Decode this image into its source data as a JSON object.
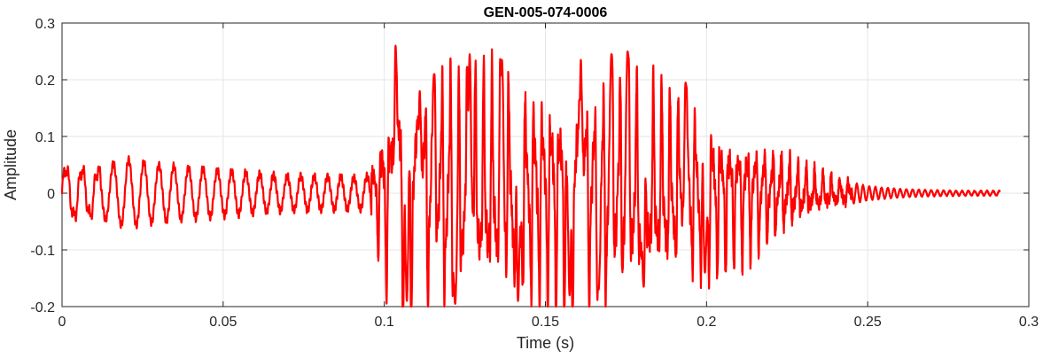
{
  "chart_data": {
    "type": "line",
    "title": "GEN-005-074-0006",
    "xlabel": "Time (s)",
    "ylabel": "Amplitude",
    "xlim": [
      0,
      0.3
    ],
    "ylim": [
      -0.2,
      0.3
    ],
    "xticks": [
      0,
      0.05,
      0.1,
      0.15,
      0.2,
      0.25,
      0.3
    ],
    "xtick_labels": [
      "0",
      "0.05",
      "0.1",
      "0.15",
      "0.2",
      "0.25",
      "0.3"
    ],
    "yticks": [
      -0.2,
      -0.1,
      0,
      0.1,
      0.2,
      0.3
    ],
    "ytick_labels": [
      "-0.2",
      "-0.1",
      "0",
      "0.1",
      "0.2",
      "0.3"
    ],
    "grid": true,
    "legend": "none",
    "colors": {
      "series": "#ff0000",
      "grid": "#e6e6e6",
      "axes": "#262626"
    },
    "series": [
      {
        "color": "#ff0000",
        "envelope": [
          [
            0.0,
            0.045
          ],
          [
            0.01,
            0.04
          ],
          [
            0.02,
            0.06
          ],
          [
            0.03,
            0.05
          ],
          [
            0.04,
            0.045
          ],
          [
            0.05,
            0.04
          ],
          [
            0.06,
            0.035
          ],
          [
            0.07,
            0.03
          ],
          [
            0.08,
            0.03
          ],
          [
            0.09,
            0.028
          ],
          [
            0.095,
            0.03
          ],
          [
            0.1,
            0.16
          ],
          [
            0.105,
            0.23
          ],
          [
            0.11,
            0.2
          ],
          [
            0.12,
            0.22
          ],
          [
            0.13,
            0.21
          ],
          [
            0.14,
            0.2
          ],
          [
            0.15,
            0.2
          ],
          [
            0.16,
            0.2
          ],
          [
            0.17,
            0.21
          ],
          [
            0.18,
            0.2
          ],
          [
            0.19,
            0.17
          ],
          [
            0.2,
            0.15
          ],
          [
            0.21,
            0.12
          ],
          [
            0.22,
            0.09
          ],
          [
            0.23,
            0.05
          ],
          [
            0.24,
            0.025
          ],
          [
            0.25,
            0.012
          ],
          [
            0.26,
            0.007
          ],
          [
            0.27,
            0.005
          ],
          [
            0.28,
            0.004
          ],
          [
            0.29,
            0.004
          ]
        ],
        "peaks": [
          [
            0.1035,
            0.26
          ],
          [
            0.107,
            -0.19
          ],
          [
            0.111,
            0.18
          ],
          [
            0.1155,
            0.21
          ],
          [
            0.122,
            -0.195
          ],
          [
            0.1265,
            0.245
          ],
          [
            0.1365,
            0.235
          ],
          [
            0.1415,
            -0.19
          ],
          [
            0.1575,
            -0.18
          ],
          [
            0.161,
            0.235
          ],
          [
            0.1665,
            -0.17
          ],
          [
            0.1705,
            0.245
          ],
          [
            0.1755,
            0.25
          ],
          [
            0.1805,
            -0.165
          ],
          [
            0.1935,
            0.195
          ],
          [
            0.1995,
            -0.14
          ]
        ]
      }
    ],
    "t_end": 0.291
  }
}
